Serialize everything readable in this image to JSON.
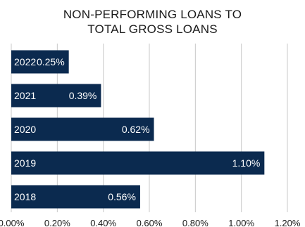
{
  "title_line1": "NON-PERFORMING LOANS TO",
  "title_line2": "TOTAL GROSS LOANS",
  "chart_data": {
    "type": "bar",
    "orientation": "horizontal",
    "title": "NON-PERFORMING LOANS TO TOTAL GROSS LOANS",
    "categories": [
      "2022",
      "2021",
      "2020",
      "2019",
      "2018"
    ],
    "values": [
      0.25,
      0.39,
      0.62,
      1.1,
      0.56
    ],
    "value_labels": [
      "0.25%",
      "0.39%",
      "0.62%",
      "1.10%",
      "0.56%"
    ],
    "xlim": [
      0,
      1.2
    ],
    "x_ticks": [
      0,
      0.2,
      0.4,
      0.6,
      0.8,
      1.0,
      1.2
    ],
    "x_tick_labels": [
      "0.00%",
      "0.20%",
      "0.40%",
      "0.60%",
      "0.80%",
      "1.00%",
      "1.20%"
    ],
    "grid": "vertical",
    "bar_color": "#0b2a4f",
    "grid_color": "#c8c8c8"
  }
}
